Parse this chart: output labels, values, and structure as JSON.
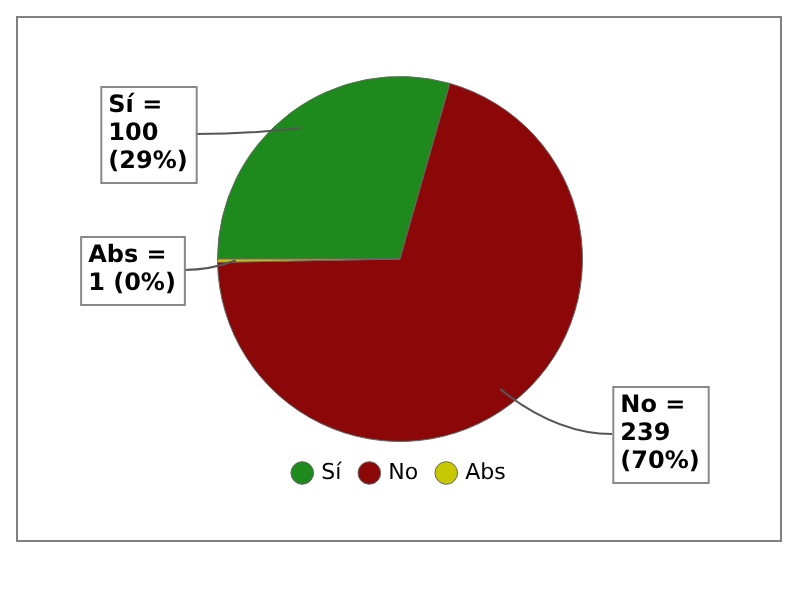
{
  "chart_data": {
    "type": "pie",
    "categories": [
      "Sí",
      "No",
      "Abs"
    ],
    "values": [
      100,
      239,
      1
    ],
    "colors": [
      "#1e8a1e",
      "#8c0808",
      "#c8c800"
    ],
    "value_labels": [
      "Sí =\n100\n(29%)",
      "No =\n239\n(70%)",
      "Abs =\n1 (0%)"
    ],
    "legend": "bottom"
  }
}
